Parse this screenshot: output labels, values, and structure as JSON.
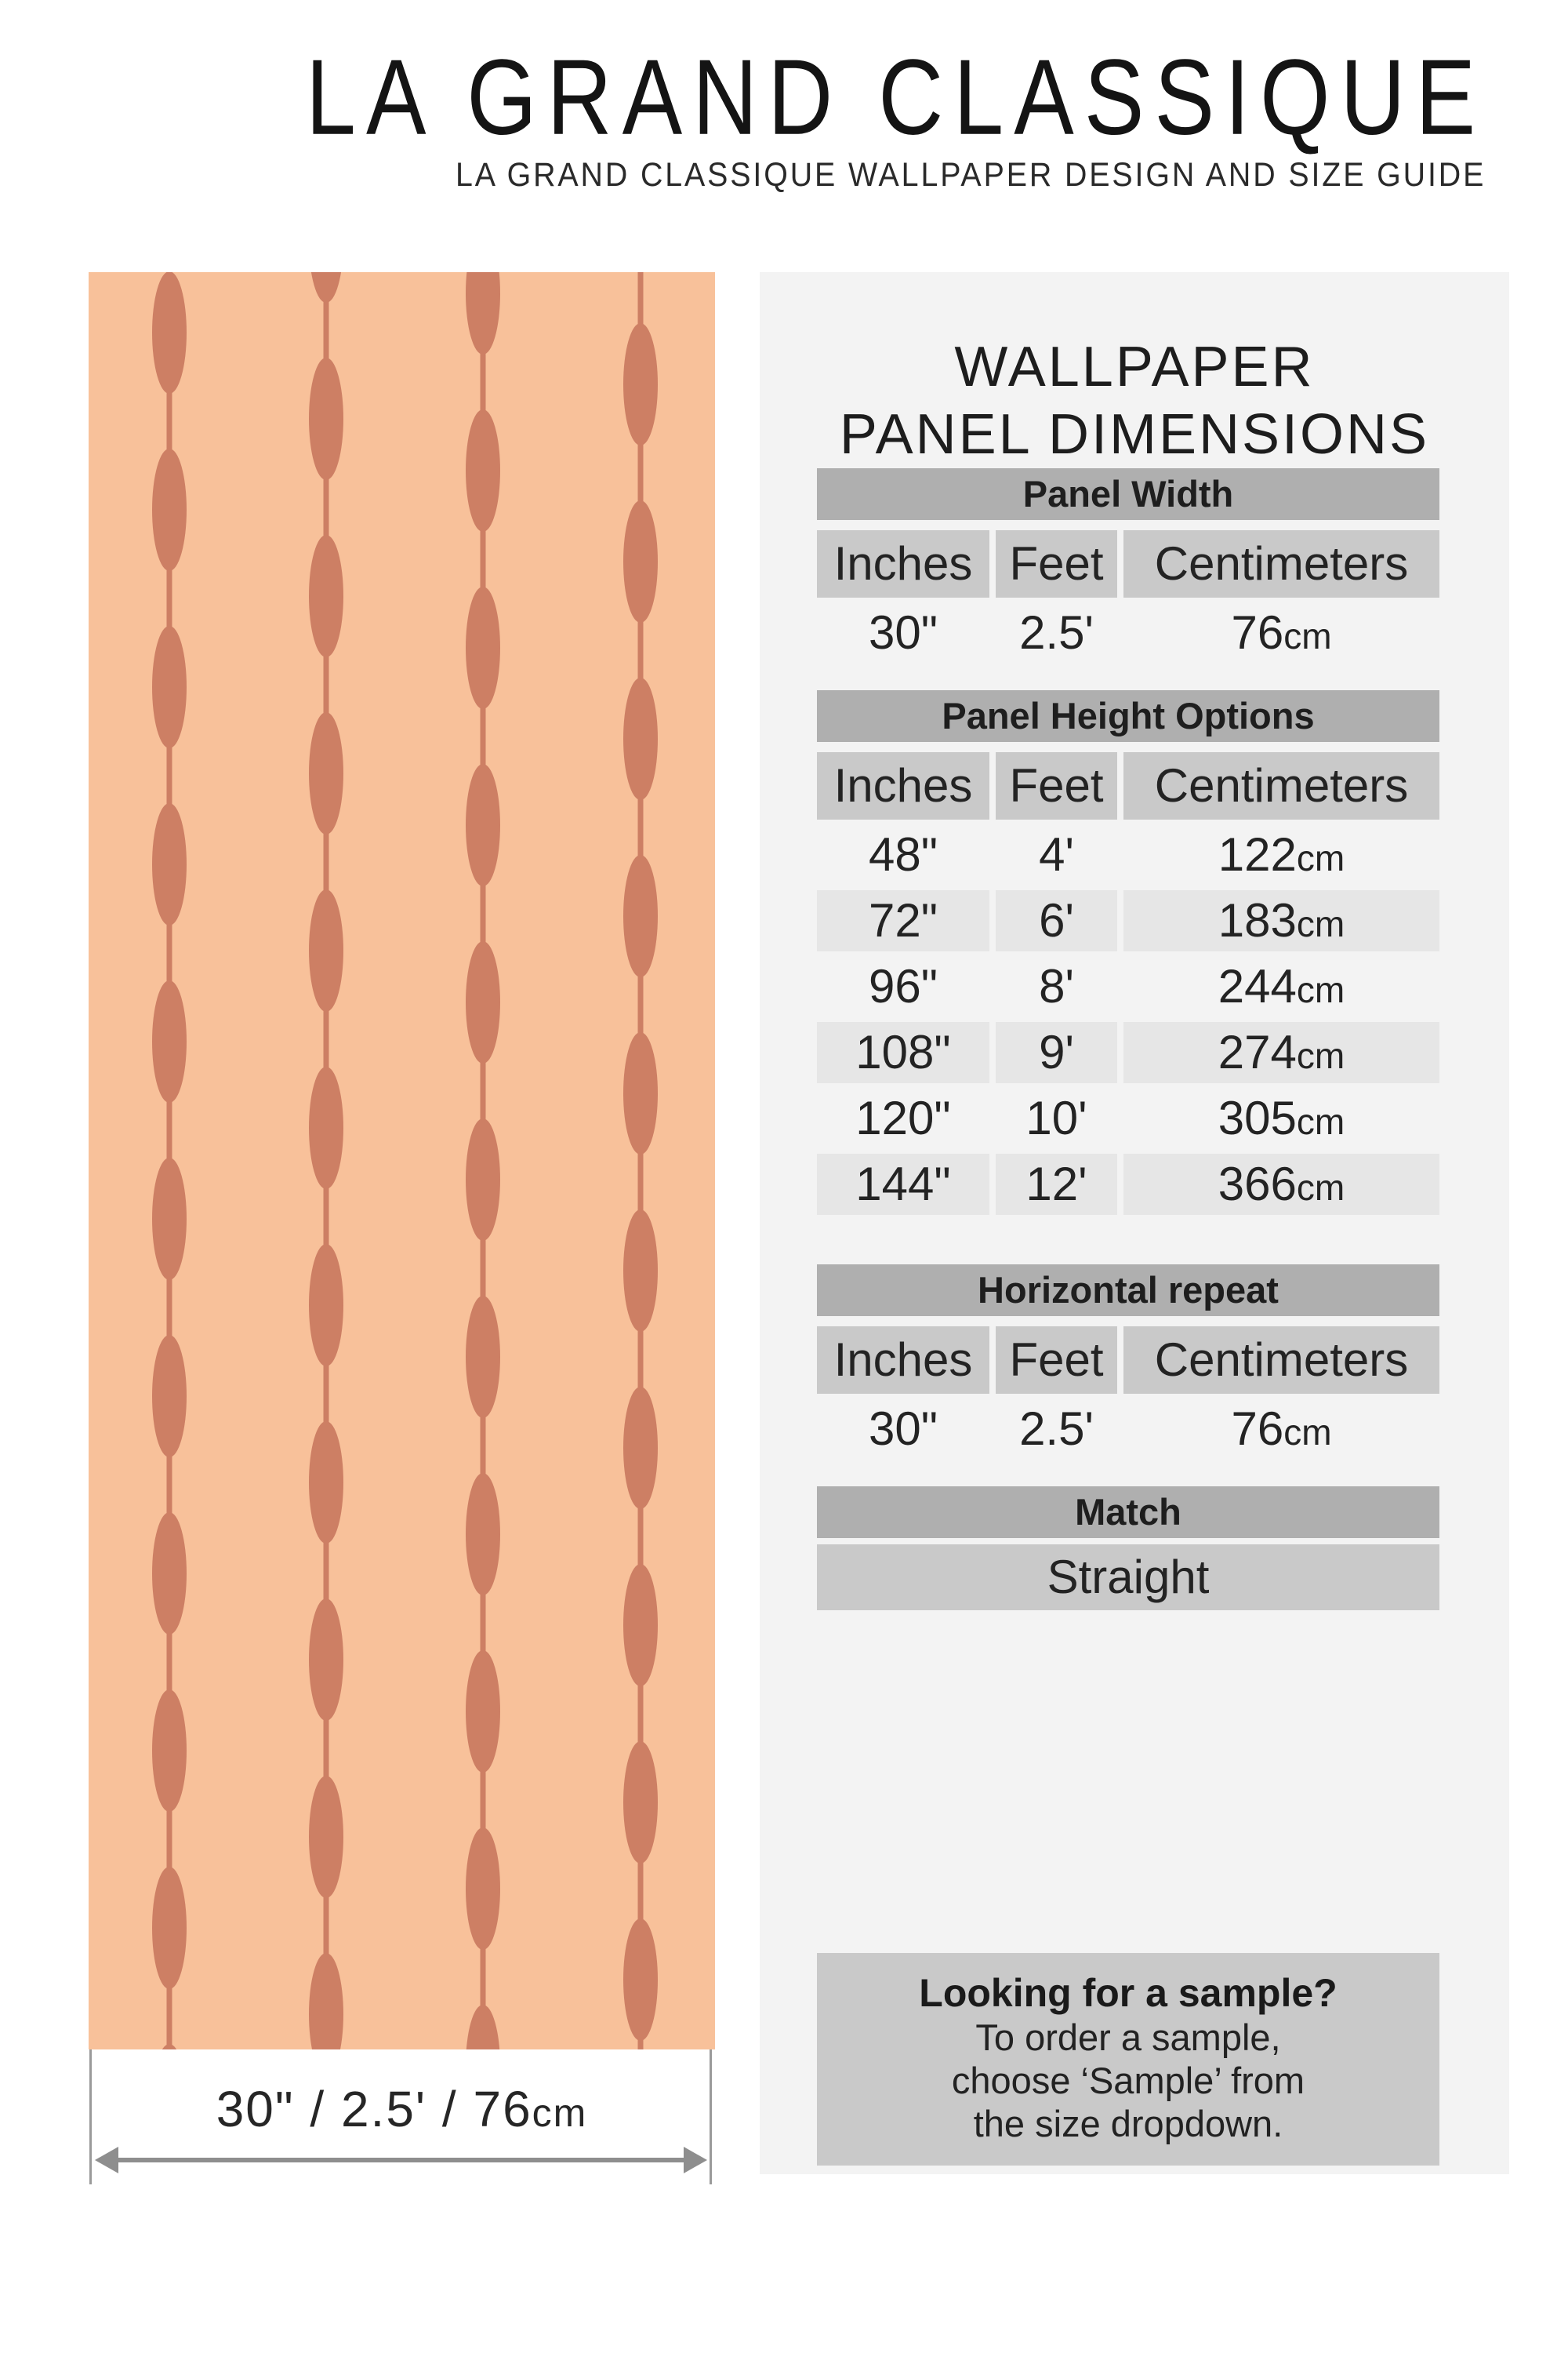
{
  "colors": {
    "peach_bg": "#F8C19A",
    "bead": "#CD7F64",
    "panel_bg": "#F3F3F3",
    "bar_gray": "#AFAFAF",
    "cell_gray": "#C9C9C9",
    "stripe_gray": "#E6E6E6",
    "note_gray": "#C9C9C9",
    "arrow_gray": "#8E8E8E",
    "text_dark": "#262626"
  },
  "header": {
    "title": "LA GRAND CLASSIQUE",
    "subtitle": "LA GRAND CLASSIQUE WALLPAPER DESIGN AND SIZE GUIDE"
  },
  "annotation": {
    "pre": "30\" / 2.5' / 76",
    "unit": "cm"
  },
  "dimensions": {
    "title1": "WALLPAPER",
    "title2": "PANEL DIMENSIONS",
    "col_headers": {
      "inches": "Inches",
      "feet": "Feet",
      "centimeters": "Centimeters"
    },
    "panel_width": {
      "title": "Panel Width",
      "row": {
        "in": "30\"",
        "ft": "2.5'",
        "cm": {
          "v": "76",
          "u": "cm"
        }
      }
    },
    "panel_height": {
      "title": "Panel Height Options",
      "rows": [
        {
          "in": "48\"",
          "ft": "4'",
          "cm": {
            "v": "122",
            "u": "cm"
          }
        },
        {
          "in": "72\"",
          "ft": "6'",
          "cm": {
            "v": "183",
            "u": "cm"
          }
        },
        {
          "in": "96\"",
          "ft": "8'",
          "cm": {
            "v": "244",
            "u": "cm"
          }
        },
        {
          "in": "108\"",
          "ft": "9'",
          "cm": {
            "v": "274",
            "u": "cm"
          }
        },
        {
          "in": "120\"",
          "ft": "10'",
          "cm": {
            "v": "305",
            "u": "cm"
          }
        },
        {
          "in": "144\"",
          "ft": "12'",
          "cm": {
            "v": "366",
            "u": "cm"
          }
        }
      ]
    },
    "horizontal_repeat": {
      "title": "Horizontal repeat",
      "row": {
        "in": "30\"",
        "ft": "2.5'",
        "cm": {
          "v": "76",
          "u": "cm"
        }
      }
    },
    "match": {
      "title": "Match",
      "value": "Straight"
    }
  },
  "sample_note": {
    "title": "Looking for a sample?",
    "lines": [
      "To order a sample,",
      "choose ‘Sample’ from",
      "the size dropdown."
    ]
  }
}
